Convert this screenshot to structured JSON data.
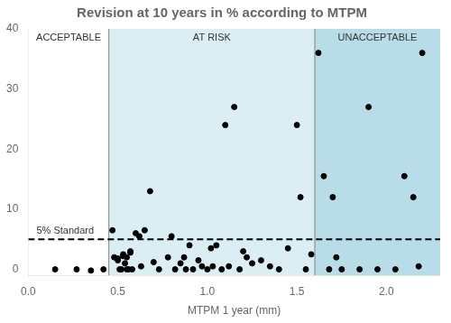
{
  "chart_data": {
    "type": "scatter",
    "title": "Revision at 10 years in % according to MTPM",
    "xlabel": "MTPM 1 year (mm)",
    "x": [
      0.15,
      0.27,
      0.35,
      0.42,
      0.47,
      0.48,
      0.5,
      0.5,
      0.51,
      0.52,
      0.53,
      0.53,
      0.54,
      0.55,
      0.55,
      0.56,
      0.57,
      0.57,
      0.58,
      0.6,
      0.62,
      0.63,
      0.65,
      0.68,
      0.7,
      0.73,
      0.78,
      0.8,
      0.82,
      0.85,
      0.87,
      0.88,
      0.9,
      0.92,
      0.95,
      0.97,
      1.0,
      1.02,
      1.03,
      1.05,
      1.08,
      1.1,
      1.12,
      1.15,
      1.18,
      1.2,
      1.22,
      1.25,
      1.3,
      1.35,
      1.4,
      1.45,
      1.5,
      1.52,
      1.55,
      1.58,
      1.62,
      1.65,
      1.68,
      1.7,
      1.72,
      1.75,
      1.85,
      1.9,
      1.95,
      2.05,
      2.1,
      2.15,
      2.18,
      2.2
    ],
    "values": [
      0.0,
      0.0,
      -0.2,
      0.0,
      6.5,
      2.0,
      1.5,
      1.8,
      0.0,
      0.0,
      2.2,
      2.5,
      1.0,
      2.0,
      0.0,
      0.0,
      2.8,
      3.0,
      0.0,
      6.0,
      5.5,
      0.5,
      6.5,
      13.0,
      1.2,
      0.0,
      2.0,
      5.5,
      0.0,
      1.0,
      2.0,
      0.0,
      4.0,
      0.0,
      1.5,
      0.5,
      0.0,
      3.5,
      0.5,
      4.0,
      0.0,
      24.0,
      0.5,
      27.0,
      0.0,
      3.0,
      2.0,
      1.0,
      1.5,
      0.5,
      0.0,
      3.5,
      24.0,
      12.0,
      0.0,
      2.5,
      36.0,
      15.5,
      0.0,
      12.0,
      2.0,
      0.0,
      0.0,
      27.0,
      0.0,
      0.0,
      15.5,
      12.0,
      0.5,
      36.0
    ],
    "color": "#000000",
    "xlim": [
      0.0,
      2.3
    ],
    "ylim": [
      -1,
      40
    ],
    "xticks": [
      {
        "value": 0.0,
        "label": "0.0"
      },
      0.5,
      {
        "value": 1.0,
        "label": "1.0"
      },
      1.5,
      {
        "value": 2.0,
        "label": "2.0"
      }
    ],
    "yticks": [
      0,
      10,
      20,
      30,
      40
    ],
    "grid": false,
    "regions": [
      {
        "from": 0.0,
        "to": 0.45,
        "label": "ACCEPTABLE",
        "color": "#ffffff"
      },
      {
        "from": 0.45,
        "to": 1.6,
        "label": "AT RISK",
        "color": "#daeef3"
      },
      {
        "from": 1.6,
        "to": 2.3,
        "label": "UNACCEPTABLE",
        "color": "#b8dde8"
      }
    ],
    "reference_lines": [
      {
        "axis": "y",
        "value": 5,
        "label": "5% Standard",
        "color": "#000000",
        "line_style": "dashed"
      },
      {
        "axis": "x",
        "value": 0.45,
        "color": "#808080",
        "line_style": "solid"
      },
      {
        "axis": "x",
        "value": 1.6,
        "color": "#808080",
        "line_style": "solid"
      }
    ]
  }
}
